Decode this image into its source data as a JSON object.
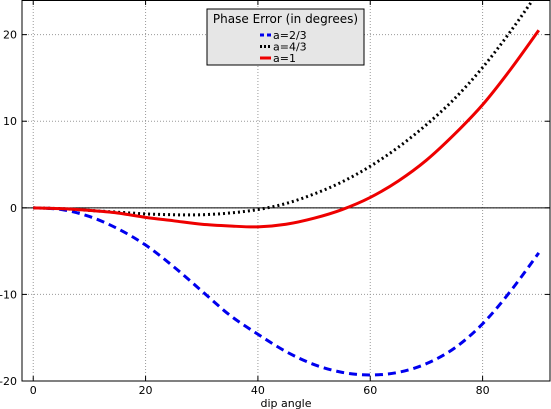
{
  "chart_data": {
    "type": "line",
    "title": "",
    "xlabel": "dip angle",
    "ylabel": "",
    "xlim": [
      -2,
      92
    ],
    "ylim": [
      -20,
      24
    ],
    "xticks": [
      0,
      20,
      40,
      60,
      80
    ],
    "yticks": [
      -20,
      -10,
      0,
      10,
      20
    ],
    "grid": true,
    "zero_line": true,
    "legend": {
      "title": "Phase Error (in degrees)",
      "placement": "top-center",
      "background": "#e6e6e6"
    },
    "x": [
      0,
      5,
      10,
      15,
      20,
      25,
      30,
      35,
      40,
      45,
      50,
      55,
      60,
      65,
      70,
      75,
      80,
      85,
      90
    ],
    "series": [
      {
        "name": "a=2/3",
        "color": "#0000ee",
        "style": "dashed",
        "values": [
          0,
          -0.2,
          -1.0,
          -2.4,
          -4.3,
          -6.8,
          -9.6,
          -12.4,
          -14.6,
          -16.6,
          -18.1,
          -19.0,
          -19.3,
          -19.0,
          -18.0,
          -16.2,
          -13.4,
          -9.6,
          -5.2
        ]
      },
      {
        "name": "a=4/3",
        "color": "#000000",
        "style": "dotted",
        "values": [
          0,
          -0.1,
          -0.3,
          -0.5,
          -0.7,
          -0.8,
          -0.8,
          -0.6,
          -0.2,
          0.5,
          1.6,
          3.0,
          4.8,
          7.0,
          9.6,
          12.6,
          16.2,
          20.4,
          25.0
        ]
      },
      {
        "name": "a=1",
        "color": "#ee0000",
        "style": "solid",
        "values": [
          0,
          -0.1,
          -0.3,
          -0.6,
          -1.1,
          -1.5,
          -1.9,
          -2.1,
          -2.2,
          -1.9,
          -1.2,
          -0.2,
          1.2,
          3.1,
          5.5,
          8.5,
          11.9,
          16.0,
          20.5
        ]
      }
    ]
  }
}
